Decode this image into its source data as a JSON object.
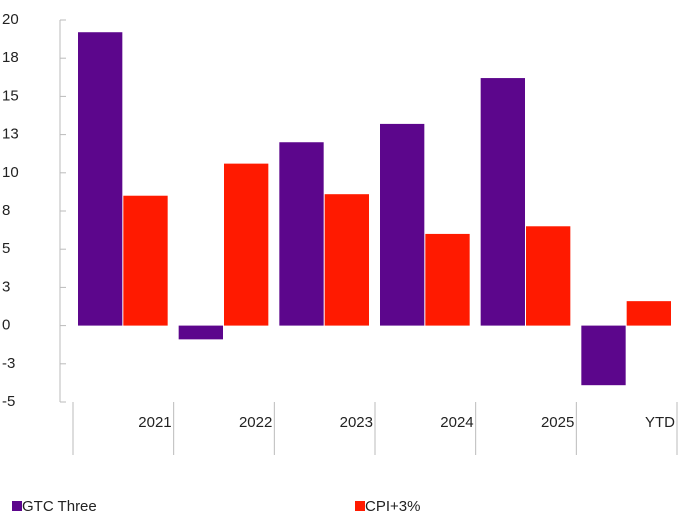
{
  "chart_data": {
    "type": "bar",
    "categories": [
      "2021",
      "2022",
      "2023",
      "2024",
      "2025",
      "YTD"
    ],
    "series": [
      {
        "name": "GTC Three",
        "color": "#5c068c",
        "values": [
          19.2,
          -0.9,
          12.0,
          13.2,
          16.2,
          -3.9
        ]
      },
      {
        "name": "CPI+3%",
        "color": "#ff1a00",
        "values": [
          8.5,
          10.6,
          8.6,
          6.0,
          6.5,
          1.6
        ]
      }
    ],
    "ylim": [
      -5,
      20
    ],
    "yticks": [
      20,
      {
        "value": 17.5,
        "label": "18"
      },
      15,
      {
        "value": 12.5,
        "label": "13"
      },
      10,
      {
        "value": 7.5,
        "label": "8"
      },
      5,
      {
        "value": 2.5,
        "label": "3"
      },
      0,
      {
        "value": -2.5,
        "label": "-3"
      },
      -5
    ],
    "grid": false,
    "legend": "bottom"
  }
}
